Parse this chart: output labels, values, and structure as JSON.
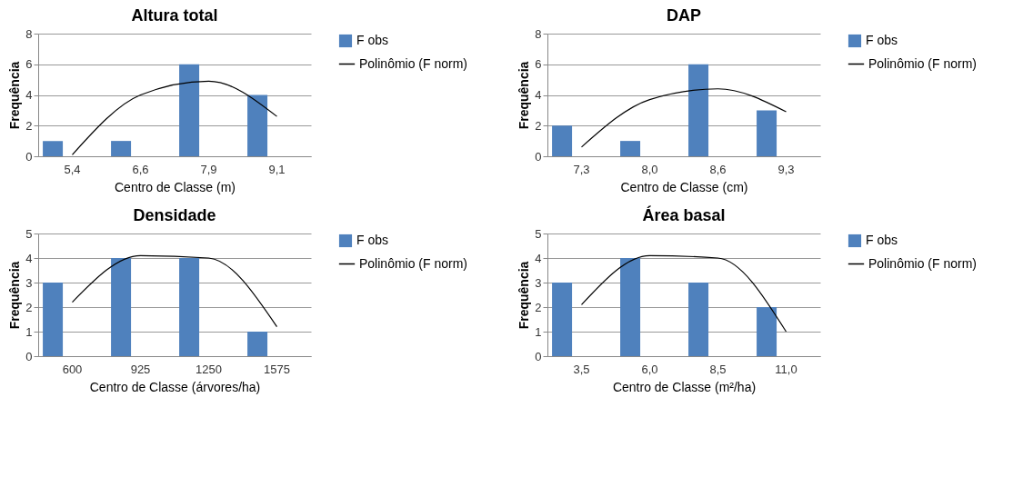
{
  "chart_data": [
    {
      "type": "bar",
      "title": "Altura total",
      "xlabel": "Centro de Classe  (m)",
      "ylabel": "Frequência",
      "categories": [
        "5,4",
        "6,6",
        "7,9",
        "9,1"
      ],
      "series": [
        {
          "name": "F obs",
          "color": "#4f81bd",
          "values": [
            1,
            1,
            6,
            4
          ]
        },
        {
          "name": "Polinômio (F norm)",
          "type": "line",
          "color": "#000000",
          "values": [
            0.1,
            4.0,
            4.9,
            2.6
          ]
        }
      ],
      "ylim": [
        0,
        8
      ],
      "yticks": [
        0,
        2,
        4,
        6,
        8
      ],
      "grid": "y",
      "legend": "right"
    },
    {
      "type": "bar",
      "title": "DAP",
      "xlabel": "Centro de Classe  (cm)",
      "ylabel": "Frequência",
      "categories": [
        "7,3",
        "8,0",
        "8,6",
        "9,3"
      ],
      "series": [
        {
          "name": "F obs",
          "color": "#4f81bd",
          "values": [
            2,
            1,
            6,
            3
          ]
        },
        {
          "name": "Polinômio (F norm)",
          "type": "line",
          "color": "#000000",
          "values": [
            0.6,
            3.7,
            4.4,
            2.9
          ]
        }
      ],
      "ylim": [
        0,
        8
      ],
      "yticks": [
        0,
        2,
        4,
        6,
        8
      ],
      "grid": "y",
      "legend": "right"
    },
    {
      "type": "bar",
      "title": "Densidade",
      "xlabel": "Centro de Classe  (árvores/ha)",
      "ylabel": "Frequência",
      "categories": [
        "600",
        "925",
        "1250",
        "1575"
      ],
      "series": [
        {
          "name": "F obs",
          "color": "#4f81bd",
          "values": [
            3,
            4,
            4,
            1
          ]
        },
        {
          "name": "Polinômio (F norm)",
          "type": "line",
          "color": "#000000",
          "values": [
            2.2,
            4.1,
            4.0,
            1.2
          ]
        }
      ],
      "ylim": [
        0,
        5
      ],
      "yticks": [
        0,
        1,
        2,
        3,
        4,
        5
      ],
      "grid": "y",
      "legend": "right"
    },
    {
      "type": "bar",
      "title": "Área basal",
      "xlabel": "Centro de Classe  (m²/ha)",
      "ylabel": "Frequência",
      "categories": [
        "3,5",
        "6,0",
        "8,5",
        "11,0"
      ],
      "series": [
        {
          "name": "F obs",
          "color": "#4f81bd",
          "values": [
            3,
            4,
            3,
            2
          ]
        },
        {
          "name": "Polinômio (F norm)",
          "type": "line",
          "color": "#000000",
          "values": [
            2.1,
            4.1,
            4.0,
            1.0
          ]
        }
      ],
      "ylim": [
        0,
        5
      ],
      "yticks": [
        0,
        1,
        2,
        3,
        4,
        5
      ],
      "grid": "y",
      "legend": "right"
    }
  ]
}
